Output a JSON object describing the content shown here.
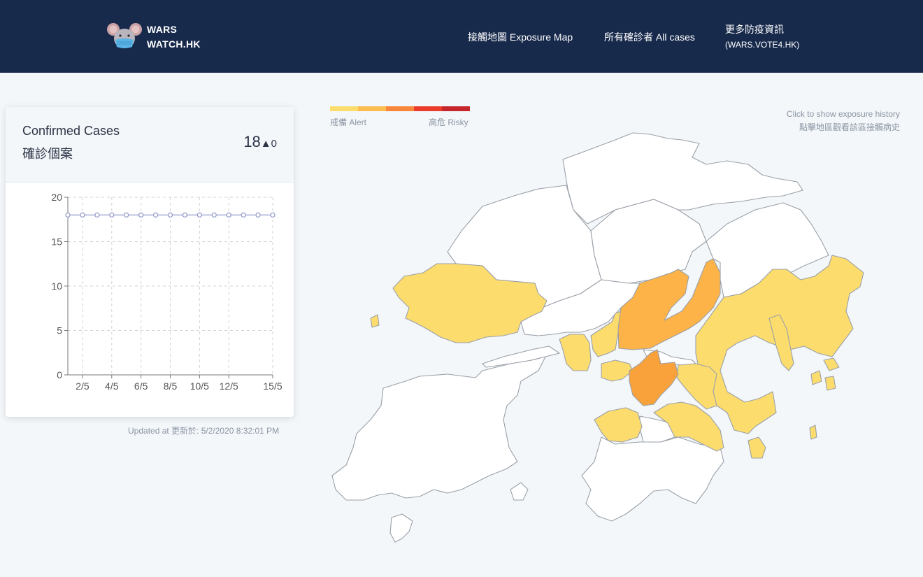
{
  "header": {
    "logo_line1": "WARS",
    "logo_line2": "WATCH.HK",
    "nav": {
      "exposure_map": "接觸地圖 Exposure Map",
      "all_cases": "所有確診者 All cases",
      "more_info": "更多防疫資訊",
      "more_info_sub": "(WARS.VOTE4.HK)"
    }
  },
  "card": {
    "title_en": "Confirmed Cases",
    "title_zh": "確診個案",
    "count": "18",
    "delta": "▲0",
    "updated": "Updated at 更新於: 5/2/2020 8:32:01 PM"
  },
  "legend": {
    "alert_label": "戒備 Alert",
    "risky_label": "高危 Risky",
    "colors": [
      "#fddc6e",
      "#fdbd4f",
      "#f7873a",
      "#ea3c2b",
      "#c4262b"
    ]
  },
  "hint": {
    "line1": "Click to show exposure history",
    "line2": "點擊地區觀看該區接觸病史"
  },
  "map_colors": {
    "none": "#ffffff",
    "alert": "#fddc6e",
    "medium": "#fdb347",
    "high": "#f9a23b",
    "accent": "#182a4c"
  },
  "chart_data": {
    "type": "line",
    "x": [
      "1/5",
      "2/5",
      "3/5",
      "4/5",
      "5/5",
      "6/5",
      "7/5",
      "8/5",
      "9/5",
      "10/5",
      "11/5",
      "12/5",
      "13/5",
      "14/5",
      "15/5"
    ],
    "xticks": [
      "2/5",
      "4/5",
      "6/5",
      "8/5",
      "10/5",
      "12/5",
      "15/5"
    ],
    "series": [
      {
        "values": [
          18,
          18,
          18,
          18,
          18,
          18,
          18,
          18,
          18,
          18,
          18,
          18,
          18,
          18,
          18
        ]
      }
    ],
    "ylim": [
      0,
      20
    ],
    "yticks": [
      0,
      5,
      10,
      15,
      20
    ],
    "grid": true,
    "color": "#8e99c9"
  }
}
